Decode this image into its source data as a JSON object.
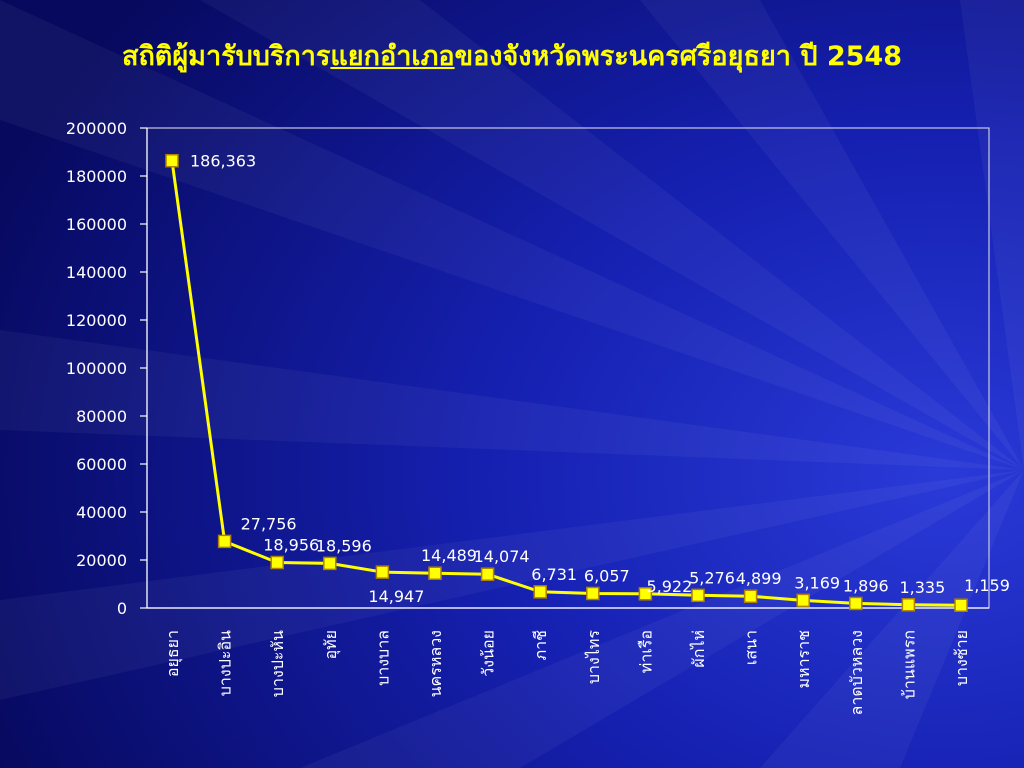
{
  "title": {
    "part1": "สถิติผู้มารับบริการ",
    "highlight": "แยกอำเภอ",
    "part2": "ของจังหวัดพระนครศรีอยุธยา ปี 2548"
  },
  "colors": {
    "background": "#0a0f84",
    "title": "#ffff00",
    "line": "#ffff00",
    "marker_fill": "#ffff00",
    "marker_stroke": "#b08000",
    "text": "#ffffff"
  },
  "chart_data": {
    "type": "line",
    "categories": [
      "อยุธยา",
      "บางปะอิน",
      "บางปะหัน",
      "อุทัย",
      "บางบาล",
      "นครหลวง",
      "วังน้อย",
      "ภาชี",
      "บางไทร",
      "ท่าเรือ",
      "ผักไห่",
      "เสนา",
      "มหาราช",
      "ลาดบัวหลวง",
      "บ้านแพรก",
      "บางซ้าย"
    ],
    "values": [
      186363,
      27756,
      18956,
      18596,
      14947,
      14489,
      14074,
      6731,
      6057,
      5922,
      5276,
      4899,
      3169,
      1896,
      1335,
      1159
    ],
    "data_labels": [
      "186,363",
      "27,756",
      "18,956",
      "18,596",
      "14,947",
      "14,489",
      "14,074",
      "6,731",
      "6,057",
      "5,922",
      "5,276",
      "4,899",
      "3,169",
      "1,896",
      "1,335",
      "1,159"
    ],
    "ylim": [
      0,
      200000
    ],
    "yticks": [
      0,
      20000,
      40000,
      60000,
      80000,
      100000,
      120000,
      140000,
      160000,
      180000,
      200000
    ],
    "ytick_labels": [
      "0",
      "20000",
      "40000",
      "60000",
      "80000",
      "100000",
      "120000",
      "140000",
      "160000",
      "180000",
      "200000"
    ],
    "grid": false,
    "legend": "none"
  }
}
